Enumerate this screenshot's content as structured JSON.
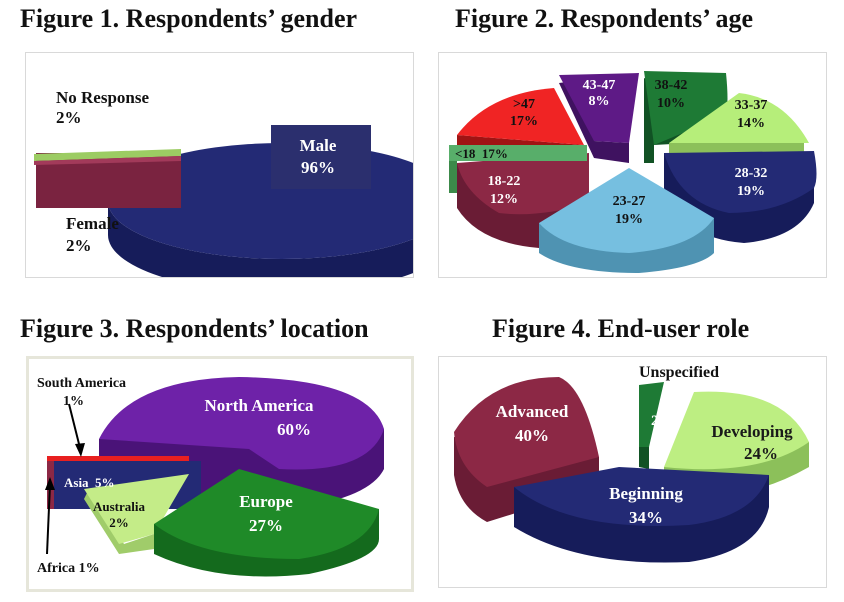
{
  "titles": {
    "fig1": "Figure 1. Respondents’ gender",
    "fig2": "Figure 2. Respondents’ age",
    "fig3": "Figure 3. Respondents’ location",
    "fig4": "Figure 4. End-user role"
  },
  "chart_data": [
    {
      "type": "pie",
      "title": "Figure 1. Respondents’ gender",
      "categories": [
        "Male",
        "No Response",
        "Female"
      ],
      "values": [
        96,
        2,
        2
      ],
      "labels": [
        "96%",
        "2%",
        "2%"
      ],
      "colors": [
        "#232a75",
        "#9ccc63",
        "#7a2340"
      ]
    },
    {
      "type": "pie",
      "title": "Figure 2. Respondents’ age",
      "categories": [
        "38-42",
        "33-37",
        "28-32",
        "23-27",
        "18-22",
        "<18",
        ">47",
        "43-47"
      ],
      "values": [
        10,
        14,
        19,
        19,
        12,
        17,
        17,
        8
      ],
      "labels": [
        "10%",
        "14%",
        "19%",
        "19%",
        "12%",
        "17%",
        "17%",
        "8%"
      ],
      "colors": [
        "#1e7a35",
        "#b6ee7a",
        "#232a75",
        "#76bfe0",
        "#8c2845",
        "#58ae6a",
        "#f02424",
        "#5e1a86"
      ]
    },
    {
      "type": "pie",
      "title": "Figure 3. Respondents’ location",
      "categories": [
        "North America",
        "Europe",
        "Australia",
        "Africa",
        "Asia",
        "South America"
      ],
      "values": [
        60,
        27,
        2,
        1,
        5,
        1
      ],
      "labels": [
        "60%",
        "27%",
        "2%",
        "1%",
        "5%",
        "1%"
      ],
      "colors": [
        "#6e22a8",
        "#1f8a28",
        "#c4ec88",
        "#8c2845",
        "#232a75",
        "#e82020"
      ]
    },
    {
      "type": "pie",
      "title": "Figure 4. End-user role",
      "categories": [
        "Unspecified",
        "Developing",
        "Beginning",
        "Advanced"
      ],
      "values": [
        2,
        24,
        34,
        40
      ],
      "labels": [
        "2%",
        "24%",
        "34%",
        "40%"
      ],
      "colors": [
        "#1e7a35",
        "#bdee82",
        "#232a75",
        "#8c2845"
      ]
    }
  ],
  "annotations": {
    "f1_male": [
      "Male",
      "96%"
    ],
    "f1_noresp": [
      "No Response",
      "2%"
    ],
    "f1_female": [
      "Female",
      "2%"
    ],
    "f2_3842": [
      "38-42",
      "10%"
    ],
    "f2_3337": [
      "33-37",
      "14%"
    ],
    "f2_2832": [
      "28-32",
      "19%"
    ],
    "f2_2327": [
      "23-27",
      "19%"
    ],
    "f2_1822": [
      "18-22",
      "12%"
    ],
    "f2_lt18": "<18  17%",
    "f2_gt47": [
      ">47",
      "17%"
    ],
    "f2_4347": [
      "43-47",
      "8%"
    ],
    "f3_na": [
      "North America",
      "60%"
    ],
    "f3_eu": [
      "Europe",
      "27%"
    ],
    "f3_au": [
      "Australia",
      "2%"
    ],
    "f3_asia": "Asia  5%",
    "f3_sa": [
      "South America",
      "1%"
    ],
    "f3_af": "Africa 1%",
    "f4_unspec": "Unspecified",
    "f4_unspec_pct": "2%",
    "f4_dev": [
      "Developing",
      "24%"
    ],
    "f4_beg": [
      "Beginning",
      "34%"
    ],
    "f4_adv": [
      "Advanced",
      "40%"
    ]
  }
}
